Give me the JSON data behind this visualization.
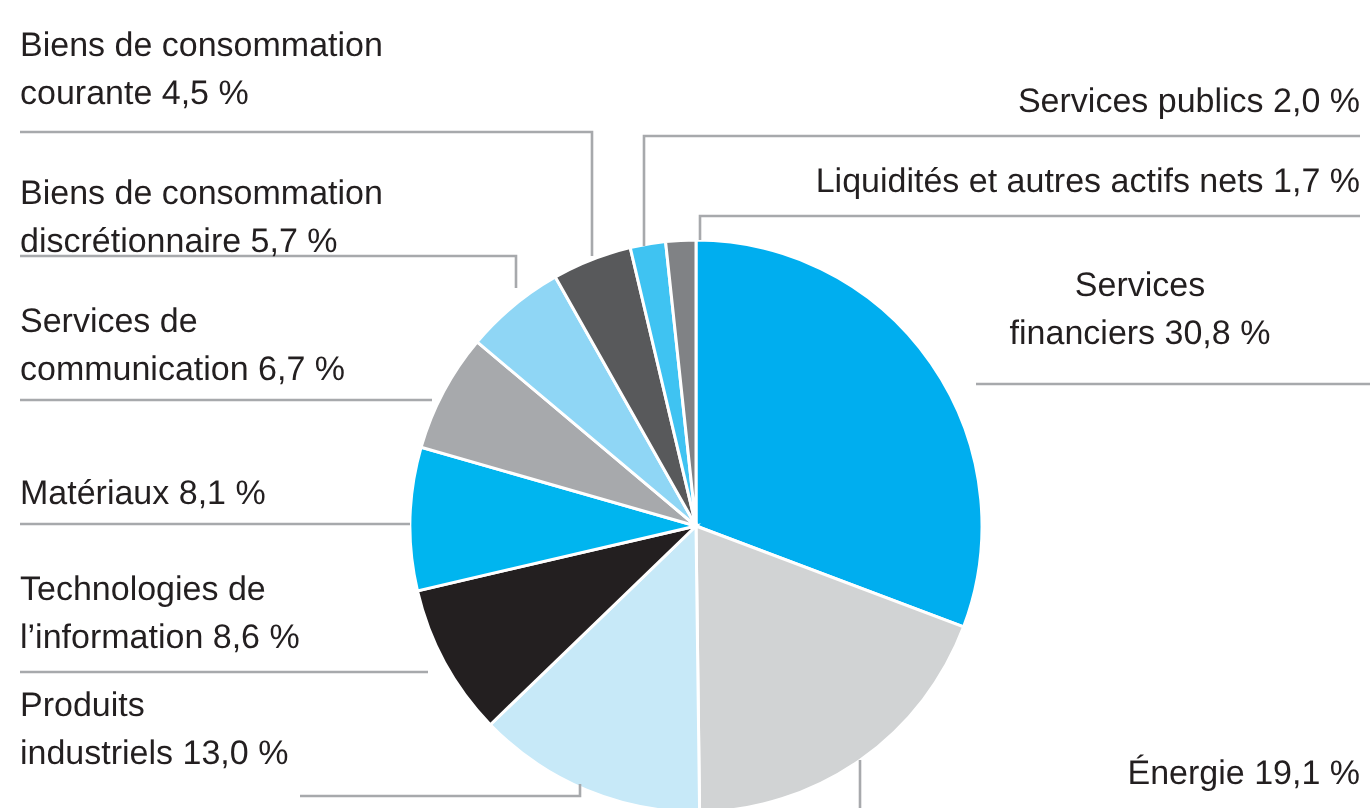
{
  "chart_data": {
    "type": "pie",
    "categories": [
      "Services financiers",
      "Énergie",
      "Produits industriels",
      "Technologies de l’information",
      "Matériaux",
      "Services de communication",
      "Biens de consommation discrétionnaire",
      "Biens de consommation courante",
      "Services publics",
      "Liquidités et autres actifs nets"
    ],
    "values": [
      30.8,
      19.1,
      13.0,
      8.6,
      8.1,
      6.7,
      5.7,
      4.5,
      2.0,
      1.7
    ],
    "value_labels": [
      "30,8 %",
      "19,1 %",
      "13,0 %",
      "8,6 %",
      "8,1 %",
      "6,7 %",
      "5,7 %",
      "4,5 %",
      "2,0 %",
      "1,7 %"
    ],
    "colors": [
      "#00aeef",
      "#d1d3d4",
      "#c7e9f8",
      "#231f20",
      "#00b5ef",
      "#a7a9ac",
      "#8fd6f5",
      "#58595b",
      "#3fc3f2",
      "#808285"
    ]
  }
}
